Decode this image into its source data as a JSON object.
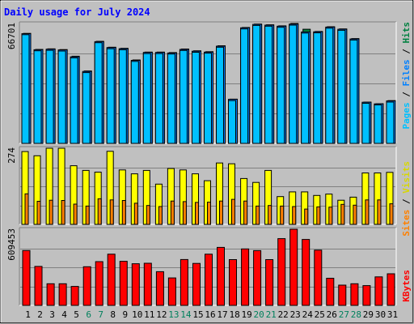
{
  "title": "Daily usage for July 2024",
  "colors": {
    "frame_bg": "#c0c0c0",
    "plot_bg": "#c0c0c0",
    "title": "#0000ff",
    "pages": "#00c0ff",
    "files": "#0080ff",
    "hits": "#008040",
    "visits": "#ffff00",
    "sites": "#ff8000",
    "kbytes": "#ff0000",
    "weekday_label": "#000000",
    "weekend_label": "#00805c",
    "axis_value": "#000000"
  },
  "chart_data": [
    {
      "type": "bar",
      "panel": "hits",
      "axis_max_label": "66701",
      "ylim": [
        0,
        66701
      ],
      "side_label": {
        "pages": "Pages",
        "sep1": " / ",
        "files": "Files",
        "sep2": " / ",
        "hits": "Hits"
      },
      "x": [
        1,
        2,
        3,
        4,
        5,
        6,
        7,
        8,
        9,
        10,
        11,
        12,
        13,
        14,
        15,
        16,
        17,
        18,
        19,
        20,
        21,
        22,
        23,
        24,
        25,
        26,
        27,
        28,
        29,
        30,
        31
      ],
      "series": [
        {
          "name": "Hits",
          "values": [
            61200,
            52300,
            52600,
            52200,
            48500,
            40300,
            56800,
            53500,
            52900,
            46400,
            50800,
            50800,
            50500,
            52500,
            51500,
            51000,
            54300,
            24600,
            64500,
            66400,
            66000,
            65400,
            66701,
            63500,
            62300,
            64900,
            63700,
            58300,
            23000,
            22100,
            23800
          ]
        },
        {
          "name": "Files",
          "values": [
            61000,
            52100,
            52400,
            52000,
            48200,
            40000,
            56600,
            53300,
            52700,
            46200,
            50600,
            50600,
            50300,
            52300,
            51300,
            50800,
            54100,
            24500,
            64300,
            66200,
            65800,
            65200,
            66400,
            62000,
            62100,
            64700,
            63500,
            58100,
            22900,
            22000,
            23600
          ]
        },
        {
          "name": "Pages",
          "values": [
            60500,
            51500,
            51800,
            51400,
            47600,
            39400,
            56000,
            52700,
            52100,
            45600,
            50000,
            50000,
            49700,
            51700,
            50700,
            50200,
            53500,
            23800,
            63700,
            65600,
            65200,
            64600,
            65800,
            61400,
            61500,
            64100,
            62900,
            57500,
            22300,
            21400,
            23000
          ]
        }
      ]
    },
    {
      "type": "bar",
      "panel": "visits",
      "axis_max_label": "274",
      "ylim": [
        0,
        274
      ],
      "side_label": {
        "sites": "Sites",
        "sep": " / ",
        "visits": "Visits"
      },
      "x": [
        1,
        2,
        3,
        4,
        5,
        6,
        7,
        8,
        9,
        10,
        11,
        12,
        13,
        14,
        15,
        16,
        17,
        18,
        19,
        20,
        21,
        22,
        23,
        24,
        25,
        26,
        27,
        28,
        29,
        30,
        31
      ],
      "series": [
        {
          "name": "Visits",
          "values": [
            262,
            247,
            274,
            274,
            211,
            194,
            188,
            263,
            196,
            182,
            194,
            145,
            201,
            196,
            182,
            157,
            221,
            218,
            165,
            151,
            194,
            100,
            117,
            117,
            104,
            109,
            87,
            98,
            185,
            185,
            187
          ]
        },
        {
          "name": "Sites",
          "values": [
            110,
            83,
            87,
            86,
            73,
            66,
            92,
            88,
            86,
            76,
            68,
            64,
            84,
            82,
            79,
            80,
            84,
            90,
            84,
            66,
            68,
            66,
            64,
            55,
            63,
            62,
            72,
            69,
            88,
            88,
            74
          ]
        }
      ]
    },
    {
      "type": "bar",
      "panel": "kbytes",
      "axis_max_label": "609453",
      "ylim": [
        0,
        609453
      ],
      "side_label": {
        "kbytes": "KBytes"
      },
      "x": [
        1,
        2,
        3,
        4,
        5,
        6,
        7,
        8,
        9,
        10,
        11,
        12,
        13,
        14,
        15,
        16,
        17,
        18,
        19,
        20,
        21,
        22,
        23,
        24,
        25,
        26,
        27,
        28,
        29,
        30,
        31
      ],
      "series": [
        {
          "name": "KBytes",
          "values": [
            439000,
            312000,
            173000,
            173000,
            152000,
            309000,
            350000,
            410000,
            353000,
            333000,
            337000,
            270000,
            220000,
            367000,
            336000,
            410000,
            464000,
            366000,
            452000,
            438000,
            366000,
            534000,
            609453,
            528000,
            442000,
            217000,
            162000,
            173000,
            158000,
            228000,
            253000
          ]
        }
      ]
    }
  ]
}
